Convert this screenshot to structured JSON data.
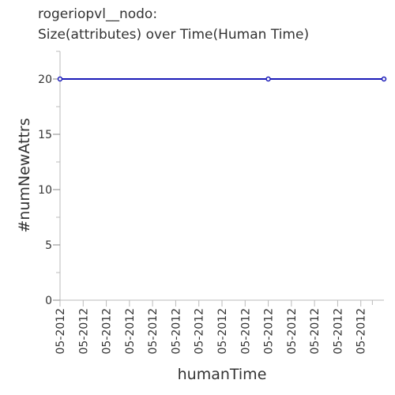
{
  "chart_data": {
    "type": "line",
    "title": "rogeriopvl__nodo:",
    "subtitle": "Size(attributes) over Time(Human Time)",
    "xlabel": "humanTime",
    "ylabel": "#numNewAttrs",
    "x_tick_labels": [
      "05-2012",
      "05-2012",
      "05-2012",
      "05-2012",
      "05-2012",
      "05-2012",
      "05-2012",
      "05-2012",
      "05-2012",
      "05-2012",
      "05-2012",
      "05-2012",
      "05-2012",
      "05-2012"
    ],
    "y_ticks": [
      0,
      5,
      10,
      15,
      20
    ],
    "ylim": [
      0,
      22.5
    ],
    "x_domain": [
      0,
      14
    ],
    "series": [
      {
        "x": [
          0,
          9,
          14
        ],
        "y": [
          20,
          20,
          20
        ],
        "color": "#1a1ab8"
      }
    ],
    "grid": false
  }
}
